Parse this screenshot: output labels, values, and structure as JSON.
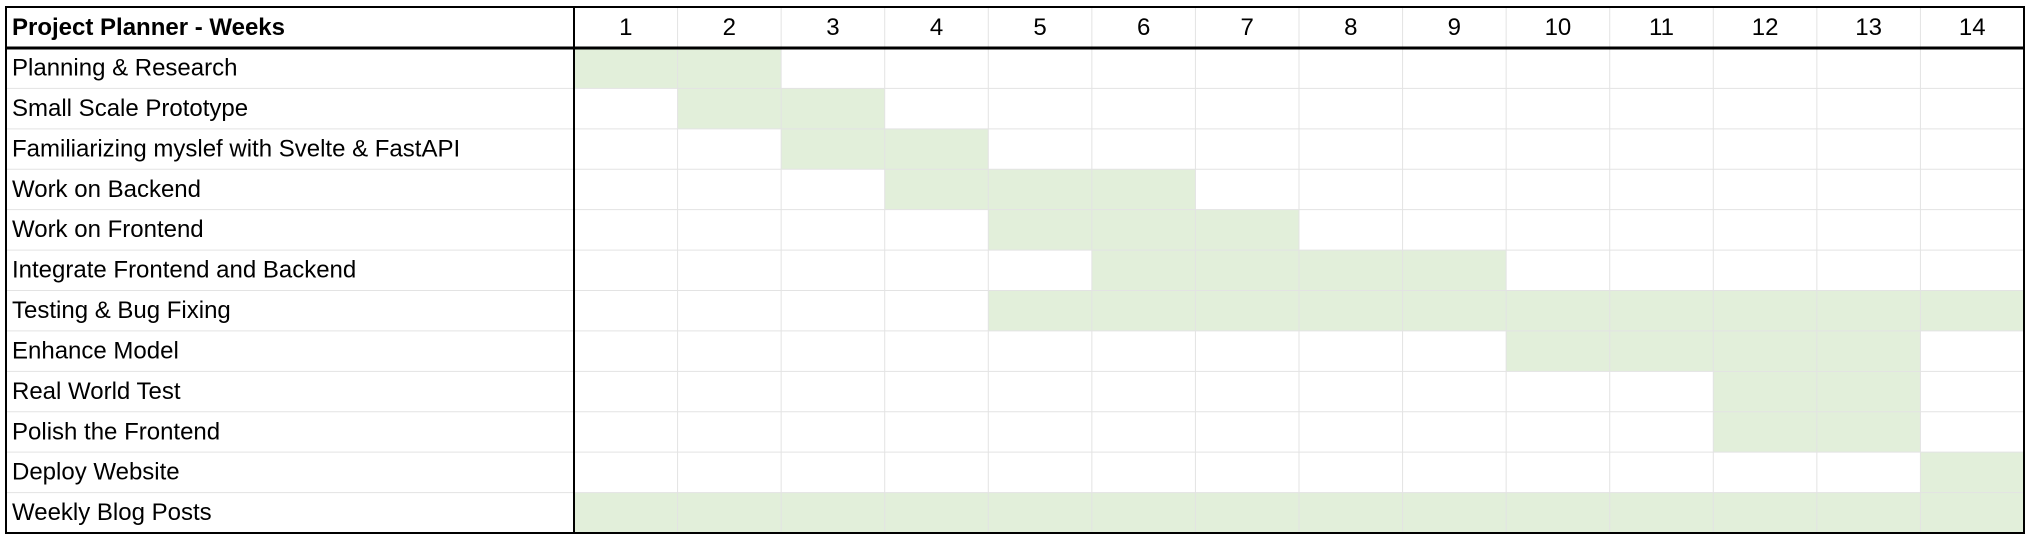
{
  "header": {
    "title": "Project Planner - Weeks",
    "weeks": [
      1,
      2,
      3,
      4,
      5,
      6,
      7,
      8,
      9,
      10,
      11,
      12,
      13,
      14
    ]
  },
  "table": {
    "rows": [
      {
        "task": "Planning & Research",
        "start": 1,
        "end": 2
      },
      {
        "task": "Small Scale Prototype",
        "start": 2,
        "end": 3
      },
      {
        "task": "Familiarizing myslef with Svelte & FastAPI",
        "start": 3,
        "end": 4
      },
      {
        "task": "Work on Backend",
        "start": 4,
        "end": 6
      },
      {
        "task": "Work on Frontend",
        "start": 5,
        "end": 7
      },
      {
        "task": "Integrate Frontend and Backend",
        "start": 6,
        "end": 9
      },
      {
        "task": "Testing & Bug Fixing",
        "start": 5,
        "end": 14
      },
      {
        "task": "Enhance Model",
        "start": 10,
        "end": 13
      },
      {
        "task": "Real World Test",
        "start": 12,
        "end": 13
      },
      {
        "task": "Polish the Frontend",
        "start": 12,
        "end": 13
      },
      {
        "task": "Deploy Website",
        "start": 14,
        "end": 14
      },
      {
        "task": "Weekly Blog Posts",
        "start": 1,
        "end": 14
      }
    ]
  }
}
